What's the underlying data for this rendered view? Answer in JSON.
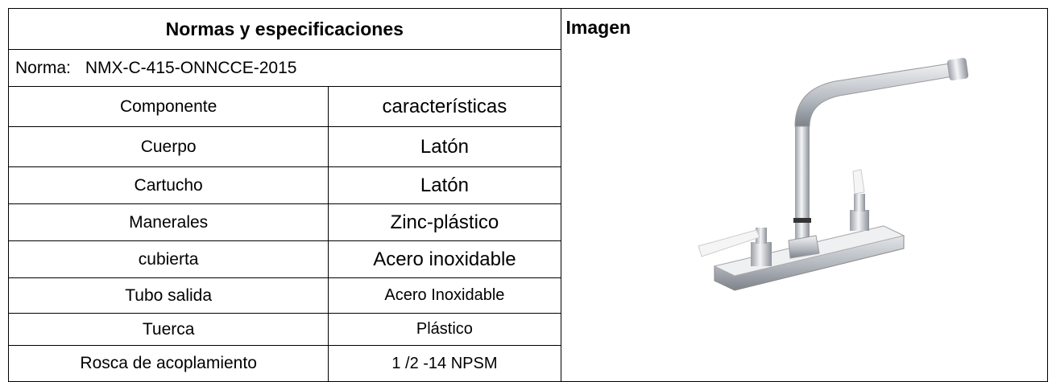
{
  "header": {
    "title": "Normas y especificaciones"
  },
  "norma": {
    "label": "Norma:",
    "value": "NMX-C-415-ONNCCE-2015"
  },
  "table": {
    "columns": [
      "Componente",
      "características"
    ],
    "rows": [
      [
        "Cuerpo",
        "Latón"
      ],
      [
        "Cartucho",
        "Latón"
      ],
      [
        "Manerales",
        "Zinc-plástico"
      ],
      [
        "cubierta",
        "Acero inoxidable"
      ],
      [
        "Tubo salida",
        "Acero Inoxidable"
      ],
      [
        "Tuerca",
        "Plástico"
      ],
      [
        "Rosca de acoplamiento",
        "1 /2 -14 NPSM"
      ]
    ]
  },
  "image": {
    "title": "Imagen"
  }
}
